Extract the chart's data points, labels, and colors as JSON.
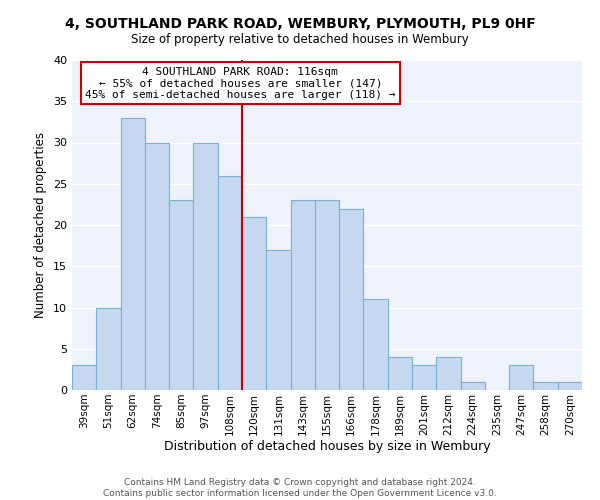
{
  "title1": "4, SOUTHLAND PARK ROAD, WEMBURY, PLYMOUTH, PL9 0HF",
  "title2": "Size of property relative to detached houses in Wembury",
  "xlabel": "Distribution of detached houses by size in Wembury",
  "ylabel": "Number of detached properties",
  "bar_labels": [
    "39sqm",
    "51sqm",
    "62sqm",
    "74sqm",
    "85sqm",
    "97sqm",
    "108sqm",
    "120sqm",
    "131sqm",
    "143sqm",
    "155sqm",
    "166sqm",
    "178sqm",
    "189sqm",
    "201sqm",
    "212sqm",
    "224sqm",
    "235sqm",
    "247sqm",
    "258sqm",
    "270sqm"
  ],
  "bar_values": [
    3,
    10,
    33,
    30,
    23,
    30,
    26,
    21,
    17,
    23,
    23,
    22,
    11,
    4,
    3,
    4,
    1,
    0,
    3,
    1,
    1
  ],
  "bar_color": "#c5d8f0",
  "bar_edge_color": "#7bafd4",
  "vline_color": "#cc0000",
  "annotation_title": "4 SOUTHLAND PARK ROAD: 116sqm",
  "annotation_line1": "← 55% of detached houses are smaller (147)",
  "annotation_line2": "45% of semi-detached houses are larger (118) →",
  "annotation_box_color": "#ffffff",
  "annotation_box_edge": "#cc0000",
  "ylim": [
    0,
    40
  ],
  "yticks": [
    0,
    5,
    10,
    15,
    20,
    25,
    30,
    35,
    40
  ],
  "footer1": "Contains HM Land Registry data © Crown copyright and database right 2024.",
  "footer2": "Contains public sector information licensed under the Open Government Licence v3.0.",
  "bg_color": "#eef2f9"
}
